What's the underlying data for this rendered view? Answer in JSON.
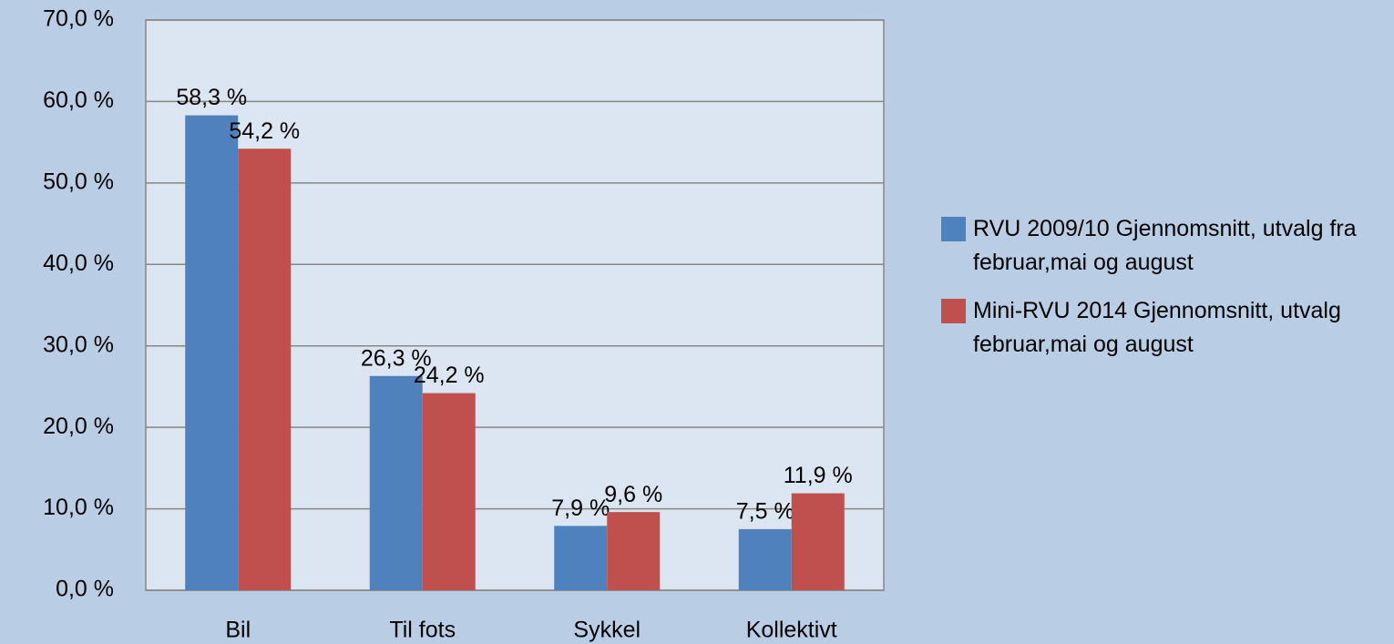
{
  "chart_data": {
    "type": "bar",
    "categories": [
      "Bil",
      "Til fots",
      "Sykkel",
      "Kollektivt"
    ],
    "series": [
      {
        "name": "RVU 2009/10 Gjennomsnitt, utvalg fra februar,mai og august",
        "color": "#4f81bd",
        "values": [
          58.3,
          26.3,
          7.9,
          7.5
        ],
        "value_labels": [
          "58,3 %",
          "26,3 %",
          "7,9 %",
          "7,5 %"
        ]
      },
      {
        "name": "Mini-RVU 2014 Gjennomsnitt, utvalg februar,mai og august",
        "color": "#c0504d",
        "values": [
          54.2,
          24.2,
          9.6,
          11.9
        ],
        "value_labels": [
          "54,2 %",
          "24,2 %",
          "9,6 %",
          "11,9 %"
        ]
      }
    ],
    "ylim": [
      0,
      70
    ],
    "yticks": [
      {
        "value": 0,
        "label": "0,0 %"
      },
      {
        "value": 10,
        "label": "10,0 %"
      },
      {
        "value": 20,
        "label": "20,0 %"
      },
      {
        "value": 30,
        "label": "30,0 %"
      },
      {
        "value": 40,
        "label": "40,0 %"
      },
      {
        "value": 50,
        "label": "50,0 %"
      },
      {
        "value": 60,
        "label": "60,0 %"
      },
      {
        "value": 70,
        "label": "70,0 %"
      }
    ],
    "grid": true,
    "legend": "right"
  }
}
